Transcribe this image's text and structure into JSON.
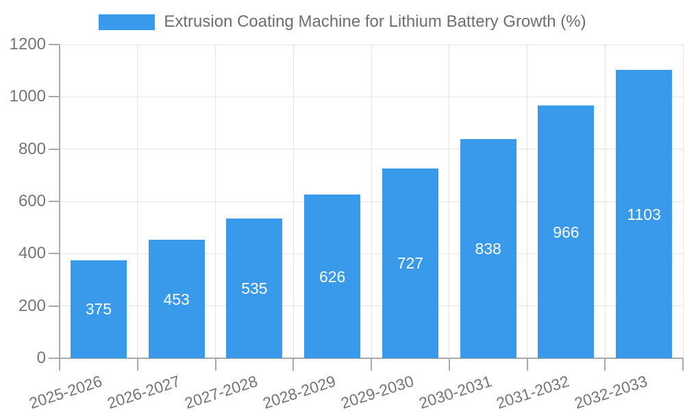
{
  "chart_data": {
    "type": "bar",
    "title": "Extrusion Coating Machine for Lithium Battery Growth (%)",
    "legend": {
      "label": "Extrusion Coating Machine for Lithium Battery Growth (%)",
      "position": "top"
    },
    "categories": [
      "2025-2026",
      "2026-2027",
      "2027-2028",
      "2028-2029",
      "2029-2030",
      "2030-2031",
      "2031-2032",
      "2032-2033"
    ],
    "values": [
      375,
      453,
      535,
      626,
      727,
      838,
      966,
      1103
    ],
    "value_labels": [
      "375",
      "453",
      "535",
      "626",
      "727",
      "838",
      "966",
      "1103"
    ],
    "xlabel": "",
    "ylabel": "",
    "ylim": [
      0,
      1200
    ],
    "yticks": [
      0,
      200,
      400,
      600,
      800,
      1000,
      1200
    ],
    "ytick_labels": [
      "0",
      "200",
      "400",
      "600",
      "800",
      "1000",
      "1200"
    ],
    "grid": true,
    "colors": {
      "bar": "#3999EB",
      "value_label": "#FFFFFF",
      "axis_text": "#757575",
      "legend_text": "#6E6E6E",
      "grid_line": "#E2E4E6",
      "axis_line": "#A9A9A9",
      "background": "#FFFFFF"
    }
  }
}
